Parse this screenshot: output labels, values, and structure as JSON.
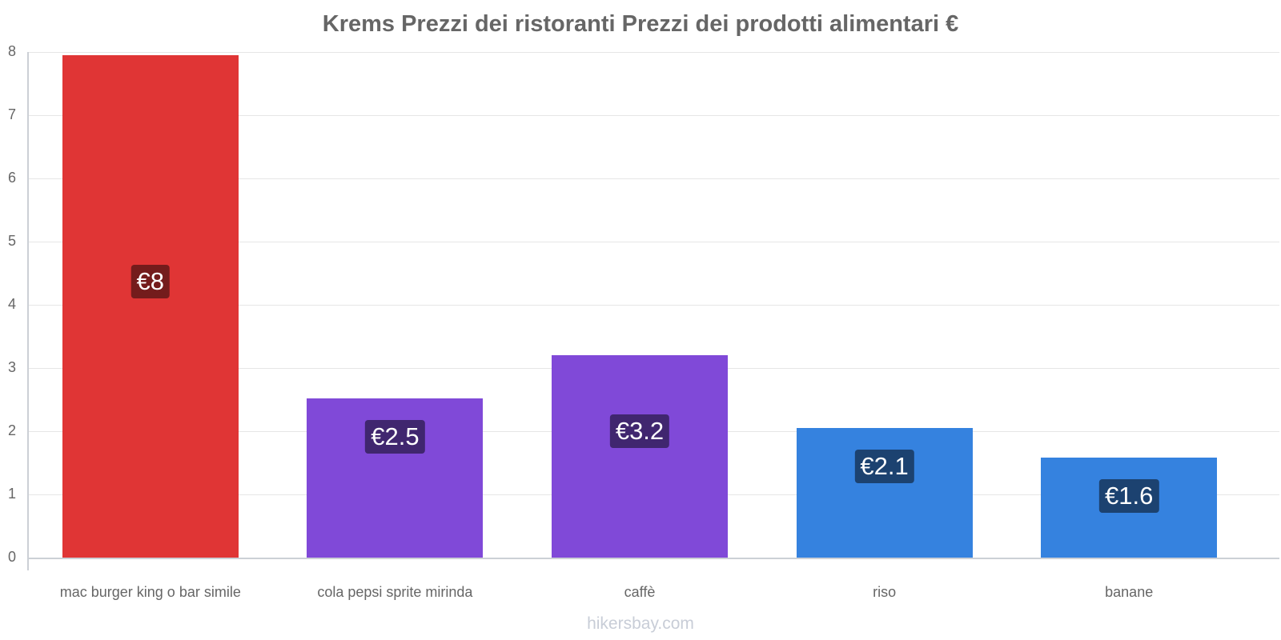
{
  "chart_data": {
    "type": "bar",
    "title": "Krems Prezzi dei ristoranti Prezzi dei prodotti alimentari €",
    "xlabel": "",
    "ylabel": "",
    "ylim": [
      0,
      8
    ],
    "yticks": [
      "0",
      "1",
      "2",
      "3",
      "4",
      "5",
      "6",
      "7",
      "8"
    ],
    "grid": true,
    "legend": null,
    "categories": [
      "mac burger king o bar simile",
      "cola pepsi sprite mirinda",
      "caffè",
      "riso",
      "banane"
    ],
    "values": [
      7.95,
      2.52,
      3.2,
      2.05,
      1.58
    ],
    "value_labels": [
      "€8",
      "€2.5",
      "€3.2",
      "€2.1",
      "€1.6"
    ],
    "bar_colors": [
      "#e03535",
      "#8049d8",
      "#8049d8",
      "#3582df",
      "#3582df"
    ],
    "label_bg_colors": [
      "#741c1c",
      "#40266f",
      "#40266f",
      "#1c4270",
      "#1c4270"
    ]
  },
  "footer": {
    "credit": "hikersbay.com"
  }
}
